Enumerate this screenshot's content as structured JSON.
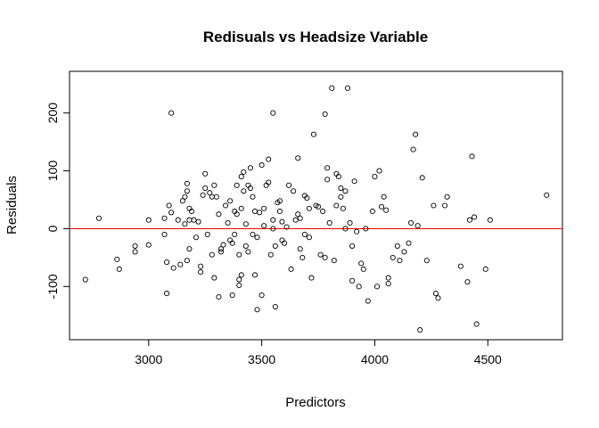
{
  "chart_data": {
    "type": "scatter",
    "title": "Redisuals vs Headsize Variable",
    "xlabel": "Predictors",
    "ylabel": "Residuals",
    "xlim": [
      2650,
      4830
    ],
    "ylim": [
      -192,
      272
    ],
    "xticks": [
      3000,
      3500,
      4000,
      4500
    ],
    "xtick_labels": [
      "3000",
      "3500",
      "4000",
      "4500"
    ],
    "yticks": [
      -100,
      0,
      100,
      200
    ],
    "ytick_labels": [
      "-100",
      "0",
      "100",
      "200"
    ],
    "grid": false,
    "legend": "none",
    "reference_line": {
      "y": 0,
      "color": "#ff0000"
    },
    "marker": "open-circle",
    "marker_color": "#000000",
    "points": [
      [
        2720,
        -88
      ],
      [
        2780,
        18
      ],
      [
        2860,
        -53
      ],
      [
        2870,
        -70
      ],
      [
        2940,
        -30
      ],
      [
        2940,
        -40
      ],
      [
        3000,
        15
      ],
      [
        3000,
        -28
      ],
      [
        3070,
        18
      ],
      [
        3070,
        -10
      ],
      [
        3080,
        -58
      ],
      [
        3080,
        -112
      ],
      [
        3090,
        40
      ],
      [
        3100,
        28
      ],
      [
        3100,
        200
      ],
      [
        3110,
        -68
      ],
      [
        3130,
        15
      ],
      [
        3140,
        -62
      ],
      [
        3150,
        48
      ],
      [
        3160,
        8
      ],
      [
        3160,
        55
      ],
      [
        3170,
        65
      ],
      [
        3170,
        -55
      ],
      [
        3170,
        78
      ],
      [
        3180,
        15
      ],
      [
        3180,
        35
      ],
      [
        3180,
        -35
      ],
      [
        3190,
        30
      ],
      [
        3200,
        15
      ],
      [
        3210,
        -15
      ],
      [
        3220,
        12
      ],
      [
        3230,
        -65
      ],
      [
        3230,
        -75
      ],
      [
        3240,
        58
      ],
      [
        3250,
        95
      ],
      [
        3250,
        70
      ],
      [
        3260,
        -10
      ],
      [
        3270,
        62
      ],
      [
        3280,
        -45
      ],
      [
        3280,
        55
      ],
      [
        3290,
        75
      ],
      [
        3290,
        -85
      ],
      [
        3300,
        55
      ],
      [
        3310,
        25
      ],
      [
        3310,
        -118
      ],
      [
        3320,
        -35
      ],
      [
        3320,
        -40
      ],
      [
        3330,
        -28
      ],
      [
        3340,
        40
      ],
      [
        3350,
        10
      ],
      [
        3360,
        48
      ],
      [
        3360,
        -20
      ],
      [
        3370,
        -25
      ],
      [
        3370,
        -115
      ],
      [
        3380,
        30
      ],
      [
        3380,
        -10
      ],
      [
        3390,
        75
      ],
      [
        3390,
        25
      ],
      [
        3400,
        -88
      ],
      [
        3400,
        -45
      ],
      [
        3400,
        -98
      ],
      [
        3410,
        35
      ],
      [
        3410,
        90
      ],
      [
        3410,
        -80
      ],
      [
        3420,
        98
      ],
      [
        3420,
        65
      ],
      [
        3430,
        8
      ],
      [
        3430,
        -30
      ],
      [
        3440,
        75
      ],
      [
        3440,
        -40
      ],
      [
        3450,
        105
      ],
      [
        3450,
        70
      ],
      [
        3460,
        55
      ],
      [
        3460,
        -10
      ],
      [
        3470,
        30
      ],
      [
        3470,
        -80
      ],
      [
        3480,
        -15
      ],
      [
        3480,
        -140
      ],
      [
        3490,
        28
      ],
      [
        3500,
        110
      ],
      [
        3500,
        -115
      ],
      [
        3510,
        35
      ],
      [
        3510,
        5
      ],
      [
        3520,
        75
      ],
      [
        3530,
        120
      ],
      [
        3530,
        80
      ],
      [
        3540,
        -45
      ],
      [
        3550,
        15
      ],
      [
        3550,
        0
      ],
      [
        3550,
        200
      ],
      [
        3560,
        -135
      ],
      [
        3560,
        -30
      ],
      [
        3570,
        45
      ],
      [
        3580,
        48
      ],
      [
        3580,
        30
      ],
      [
        3590,
        12
      ],
      [
        3590,
        -20
      ],
      [
        3600,
        -25
      ],
      [
        3610,
        3
      ],
      [
        3620,
        75
      ],
      [
        3630,
        -70
      ],
      [
        3640,
        65
      ],
      [
        3650,
        15
      ],
      [
        3660,
        122
      ],
      [
        3660,
        25
      ],
      [
        3670,
        -35
      ],
      [
        3670,
        18
      ],
      [
        3680,
        -50
      ],
      [
        3690,
        57
      ],
      [
        3690,
        -10
      ],
      [
        3700,
        53
      ],
      [
        3710,
        35
      ],
      [
        3710,
        -15
      ],
      [
        3720,
        -85
      ],
      [
        3730,
        163
      ],
      [
        3740,
        40
      ],
      [
        3750,
        38
      ],
      [
        3760,
        -45
      ],
      [
        3770,
        30
      ],
      [
        3780,
        198
      ],
      [
        3780,
        -50
      ],
      [
        3790,
        105
      ],
      [
        3790,
        85
      ],
      [
        3800,
        10
      ],
      [
        3810,
        243
      ],
      [
        3820,
        -55
      ],
      [
        3830,
        95
      ],
      [
        3830,
        40
      ],
      [
        3840,
        90
      ],
      [
        3850,
        70
      ],
      [
        3850,
        55
      ],
      [
        3860,
        35
      ],
      [
        3870,
        65
      ],
      [
        3870,
        0
      ],
      [
        3880,
        243
      ],
      [
        3890,
        10
      ],
      [
        3900,
        -90
      ],
      [
        3900,
        -30
      ],
      [
        3910,
        82
      ],
      [
        3920,
        -5
      ],
      [
        3930,
        -100
      ],
      [
        3940,
        -60
      ],
      [
        3950,
        -70
      ],
      [
        3960,
        0
      ],
      [
        3970,
        -125
      ],
      [
        3990,
        30
      ],
      [
        4000,
        90
      ],
      [
        4010,
        -100
      ],
      [
        4020,
        100
      ],
      [
        4030,
        38
      ],
      [
        4040,
        55
      ],
      [
        4050,
        32
      ],
      [
        4060,
        -85
      ],
      [
        4060,
        -95
      ],
      [
        4080,
        -50
      ],
      [
        4100,
        -30
      ],
      [
        4110,
        -55
      ],
      [
        4130,
        -40
      ],
      [
        4150,
        -25
      ],
      [
        4160,
        10
      ],
      [
        4170,
        137
      ],
      [
        4180,
        163
      ],
      [
        4190,
        5
      ],
      [
        4200,
        -175
      ],
      [
        4210,
        88
      ],
      [
        4230,
        -55
      ],
      [
        4260,
        40
      ],
      [
        4270,
        -112
      ],
      [
        4280,
        -120
      ],
      [
        4310,
        40
      ],
      [
        4320,
        55
      ],
      [
        4380,
        -65
      ],
      [
        4410,
        -92
      ],
      [
        4420,
        15
      ],
      [
        4430,
        125
      ],
      [
        4440,
        20
      ],
      [
        4450,
        -165
      ],
      [
        4490,
        -70
      ],
      [
        4510,
        15
      ],
      [
        4760,
        58
      ]
    ]
  }
}
